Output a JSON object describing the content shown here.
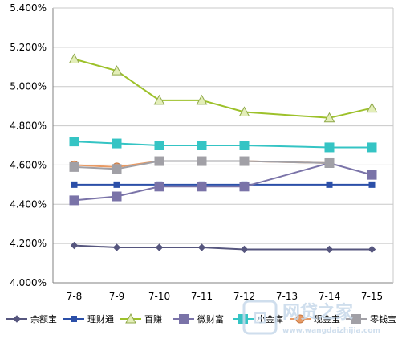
{
  "chart_data": {
    "type": "line",
    "categories": [
      "7-8",
      "7-9",
      "7-10",
      "7-11",
      "7-12",
      "7-13",
      "7-14",
      "7-15"
    ],
    "ylim": [
      4.0,
      5.4
    ],
    "y_ticks": [
      "4.000%",
      "4.200%",
      "4.400%",
      "4.600%",
      "4.800%",
      "5.000%",
      "5.200%",
      "5.400%"
    ],
    "grid": "horizontal",
    "legend": "bottom",
    "series": [
      {
        "name": "余额宝",
        "color": "#56567e",
        "marker": "diamond",
        "values": [
          4.19,
          4.18,
          4.18,
          4.18,
          4.17,
          null,
          4.17,
          4.17
        ]
      },
      {
        "name": "理财通",
        "color": "#2b4fa8",
        "marker": "square",
        "values": [
          4.5,
          4.5,
          4.5,
          4.5,
          4.5,
          null,
          4.5,
          4.5
        ]
      },
      {
        "name": "百赚",
        "color": "#9dc12a",
        "marker": "triangle",
        "values": [
          5.14,
          5.08,
          4.93,
          4.93,
          4.87,
          null,
          4.84,
          4.89
        ]
      },
      {
        "name": "微财富",
        "color": "#7a73a8",
        "marker": "square-large",
        "values": [
          4.42,
          4.44,
          4.49,
          4.49,
          4.49,
          null,
          4.61,
          4.55
        ]
      },
      {
        "name": "小金库",
        "color": "#35c4c4",
        "marker": "square-large",
        "values": [
          4.72,
          4.71,
          4.7,
          4.7,
          4.7,
          null,
          4.69,
          4.69
        ]
      },
      {
        "name": "现金宝",
        "color": "#e89a64",
        "marker": "circle",
        "values": [
          4.6,
          4.59,
          4.62,
          4.62,
          4.62,
          null,
          4.61,
          null
        ]
      },
      {
        "name": "零钱宝",
        "color": "#a1a0a6",
        "marker": "square-large",
        "values": [
          4.59,
          4.58,
          4.62,
          4.62,
          4.62,
          null,
          4.61,
          null
        ]
      }
    ]
  },
  "watermark": {
    "title": "网贷之家",
    "url": "www.wangdaizhijia.com"
  }
}
